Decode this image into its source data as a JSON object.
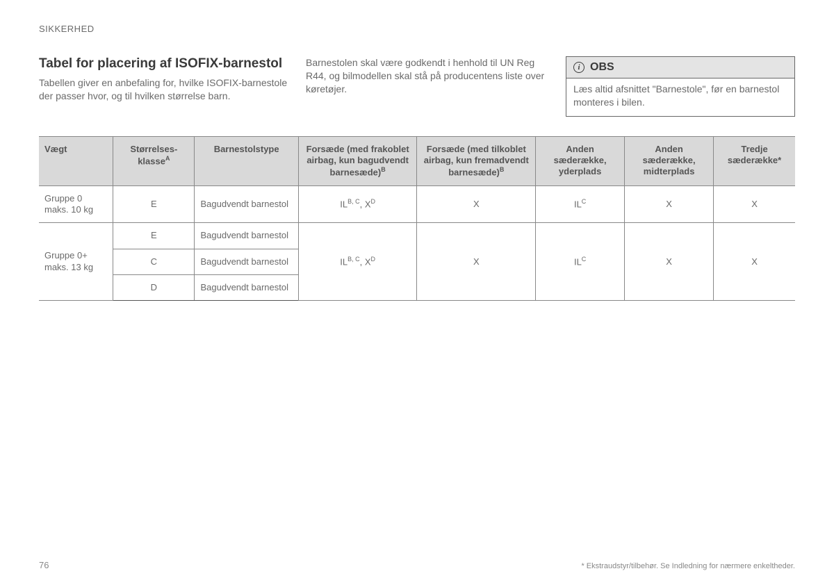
{
  "section_label": "SIKKERHED",
  "page_number": "76",
  "footnote": "* Ekstraudstyr/tilbehør. Se Indledning for nærmere enkeltheder.",
  "title": "Tabel for placering af ISOFIX-barnestol",
  "intro": "Tabellen giver en anbefaling for, hvilke ISOFIX-barnestole der passer hvor, og til hvilken størrelse barn.",
  "mid_text": "Barnestolen skal være godkendt i henhold til UN Reg R44, og bilmodellen skal stå på producentens liste over køretøjer.",
  "note": {
    "title": "OBS",
    "body": "Læs altid afsnittet \"Barnestole\", før en barnestol monteres i bilen."
  },
  "table": {
    "headers": {
      "weight": "Vægt",
      "size_class": "Størrelses-klasse",
      "size_class_sup": "A",
      "seat_type": "Barnestolstype",
      "front_off": "Forsæde (med frakoblet airbag, kun bagudvendt barnesæde)",
      "front_off_sup": "B",
      "front_on": "Forsæde (med tilkoblet airbag, kun fremadvendt barnesæde)",
      "front_on_sup": "B",
      "row2_outer": "Anden sæderække, yderplads",
      "row2_mid": "Anden sæderække, midterplads",
      "row3": "Tredje sæderække*"
    },
    "groups": [
      {
        "weight_l1": "Gruppe 0",
        "weight_l2": "maks. 10 kg",
        "subrows": [
          {
            "size": "E",
            "type": "Bagudvendt barnestol"
          }
        ],
        "front_off_html": "IL<sup>B, C</sup>, X<sup>D</sup>",
        "front_on": "X",
        "row2_outer_html": "IL<sup>C</sup>",
        "row2_mid": "X",
        "row3": "X"
      },
      {
        "weight_l1": "Gruppe 0+",
        "weight_l2": "maks. 13 kg",
        "subrows": [
          {
            "size": "E",
            "type": "Bagudvendt barnestol"
          },
          {
            "size": "C",
            "type": "Bagudvendt barnestol"
          },
          {
            "size": "D",
            "type": "Bagudvendt barnestol"
          }
        ],
        "front_off_html": "IL<sup>B, C</sup>, X<sup>D</sup>",
        "front_on": "X",
        "row2_outer_html": "IL<sup>C</sup>",
        "row2_mid": "X",
        "row3": "X"
      }
    ],
    "col_widths": [
      "100px",
      "110px",
      "140px",
      "160px",
      "160px",
      "120px",
      "120px",
      "110px"
    ]
  }
}
